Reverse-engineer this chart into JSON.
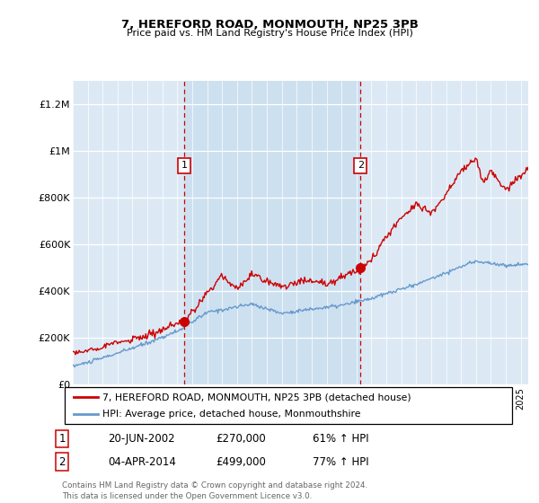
{
  "title": "7, HEREFORD ROAD, MONMOUTH, NP25 3PB",
  "subtitle": "Price paid vs. HM Land Registry's House Price Index (HPI)",
  "ylim": [
    0,
    1300000
  ],
  "yticks": [
    0,
    200000,
    400000,
    600000,
    800000,
    1000000,
    1200000
  ],
  "ytick_labels": [
    "£0",
    "£200K",
    "£400K",
    "£600K",
    "£800K",
    "£1M",
    "£1.2M"
  ],
  "background_color": "#dce9f5",
  "shade_color": "#cde0f0",
  "grid_color": "#ffffff",
  "red_line_color": "#cc0000",
  "blue_line_color": "#6699cc",
  "sale1_year": 2002.47,
  "sale1_price": 270000,
  "sale2_year": 2014.27,
  "sale2_price": 499000,
  "legend_red": "7, HEREFORD ROAD, MONMOUTH, NP25 3PB (detached house)",
  "legend_blue": "HPI: Average price, detached house, Monmouthshire",
  "table_row1": [
    "1",
    "20-JUN-2002",
    "£270,000",
    "61% ↑ HPI"
  ],
  "table_row2": [
    "2",
    "04-APR-2014",
    "£499,000",
    "77% ↑ HPI"
  ],
  "footnote": "Contains HM Land Registry data © Crown copyright and database right 2024.\nThis data is licensed under the Open Government Licence v3.0.",
  "xmin": 1995,
  "xmax": 2025.5
}
